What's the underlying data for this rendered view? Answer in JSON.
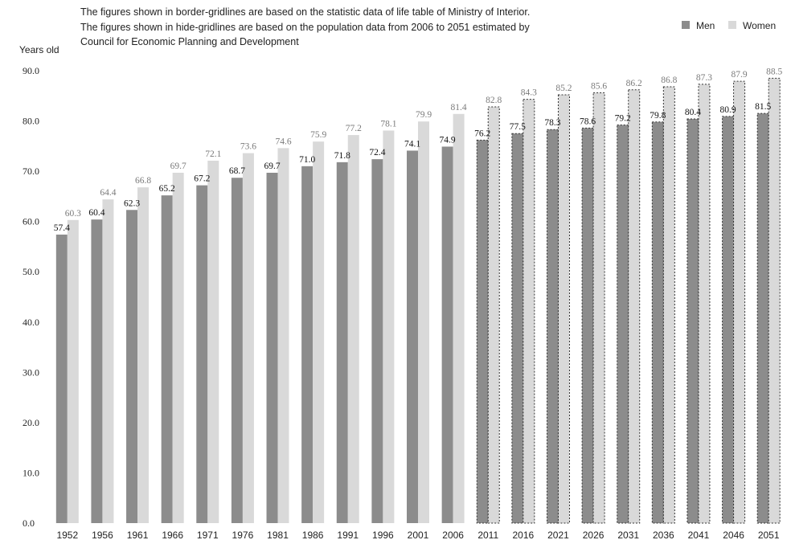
{
  "notes": [
    "The figures shown in border-gridlines are based on the statistic data of life table of Ministry of Interior.",
    "The figures shown in hide-gridlines are based on the population data from 2006 to 2051 estimated by",
    "Council for Economic Planning and Development"
  ],
  "colors": {
    "men": "#8c8c8c",
    "women": "#d9d9d9"
  },
  "chart_data": {
    "type": "bar",
    "ylabel": "Years old",
    "ylim": [
      0,
      90
    ],
    "yticks": [
      "0.0",
      "10.0",
      "20.0",
      "30.0",
      "40.0",
      "50.0",
      "60.0",
      "70.0",
      "80.0",
      "90.0"
    ],
    "categories": [
      "1952",
      "1956",
      "1961",
      "1966",
      "1971",
      "1976",
      "1981",
      "1986",
      "1991",
      "1996",
      "2001",
      "2006",
      "2011",
      "2016",
      "2021",
      "2026",
      "2031",
      "2036",
      "2041",
      "2046",
      "2051"
    ],
    "projected_from": "2011",
    "legend_position": "top-right",
    "series": [
      {
        "name": "Men",
        "values": [
          57.4,
          60.4,
          62.3,
          65.2,
          67.2,
          68.7,
          69.7,
          71.0,
          71.8,
          72.4,
          74.1,
          74.9,
          76.2,
          77.5,
          78.3,
          78.6,
          79.2,
          79.8,
          80.4,
          80.9,
          81.5
        ],
        "labels": [
          "57.4",
          "60.4",
          "62.3",
          "65.2",
          "67.2",
          "68.7",
          "69.7",
          "71.0",
          "71.8",
          "72.4",
          "74.1",
          "74.9",
          "76.2",
          "77.5",
          "78.3",
          "78.6",
          "79.2",
          "79.8",
          "80.4",
          "80.9",
          "81.5"
        ]
      },
      {
        "name": "Women",
        "values": [
          60.3,
          64.4,
          66.8,
          69.7,
          72.1,
          73.6,
          74.6,
          75.9,
          77.2,
          78.1,
          79.9,
          81.4,
          82.8,
          84.3,
          85.2,
          85.6,
          86.2,
          86.8,
          87.3,
          87.9,
          88.5
        ],
        "labels": [
          "60.3",
          "64.4",
          "66.8",
          "69.7",
          "72.1",
          "73.6",
          "74.6",
          "75.9",
          "77.2",
          "78.1",
          "79.9",
          "81.4",
          "82.8",
          "84.3",
          "85.2",
          "85.6",
          "86.2",
          "86.8",
          "87.3",
          "87.9",
          "88.5"
        ]
      }
    ]
  }
}
